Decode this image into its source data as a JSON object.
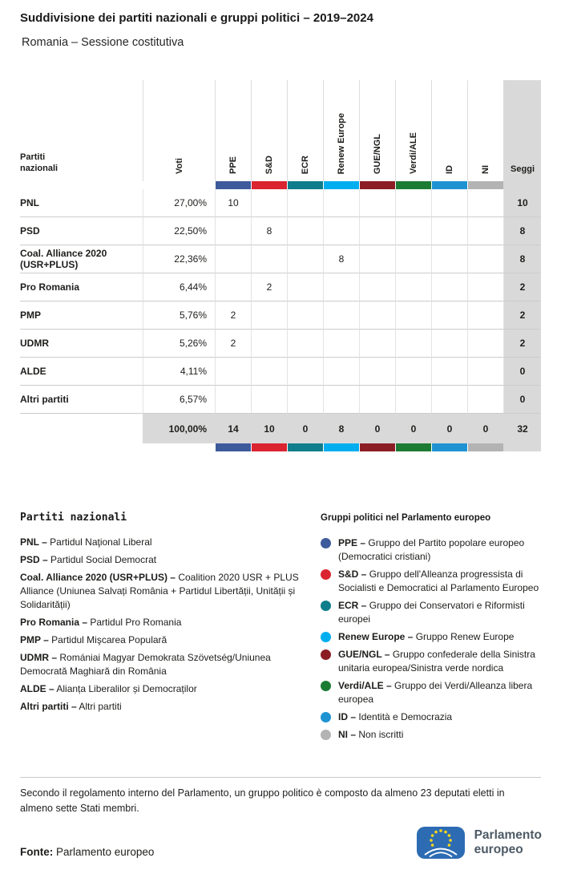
{
  "chart_data": {
    "type": "table",
    "title": "Suddivisione dei partiti nazionali e gruppi politici – 2019–2024",
    "subtitle": "Romania – Sessione costitutiva",
    "first_col_header": [
      "Partiti",
      "nazionali"
    ],
    "voti_header": "Voti",
    "seggi_header": "Seggi",
    "seggi_bg_color": "#d9d9d9",
    "groups": [
      {
        "label": "PPE",
        "color": "#3d5a9b"
      },
      {
        "label": "S&D",
        "color": "#da2430"
      },
      {
        "label": "ECR",
        "color": "#0f7d8b"
      },
      {
        "label": "Renew Europe",
        "color": "#00aeef"
      },
      {
        "label": "GUE/NGL",
        "color": "#8b1e24"
      },
      {
        "label": "Verdi/ALE",
        "color": "#1c7b33"
      },
      {
        "label": "ID",
        "color": "#1f93d2"
      },
      {
        "label": "NI",
        "color": "#b3b3b3"
      }
    ],
    "rows": [
      {
        "party": "PNL",
        "voti": "27,00%",
        "seats": [
          "10",
          "",
          "",
          "",
          "",
          "",
          "",
          ""
        ],
        "seggi": "10"
      },
      {
        "party": "PSD",
        "voti": "22,50%",
        "seats": [
          "",
          "8",
          "",
          "",
          "",
          "",
          "",
          ""
        ],
        "seggi": "8"
      },
      {
        "party": "Coal. Alliance 2020 (USR+PLUS)",
        "voti": "22,36%",
        "seats": [
          "",
          "",
          "",
          "8",
          "",
          "",
          "",
          ""
        ],
        "seggi": "8"
      },
      {
        "party": "Pro Romania",
        "voti": "6,44%",
        "seats": [
          "",
          "2",
          "",
          "",
          "",
          "",
          "",
          ""
        ],
        "seggi": "2"
      },
      {
        "party": "PMP",
        "voti": "5,76%",
        "seats": [
          "2",
          "",
          "",
          "",
          "",
          "",
          "",
          ""
        ],
        "seggi": "2"
      },
      {
        "party": "UDMR",
        "voti": "5,26%",
        "seats": [
          "2",
          "",
          "",
          "",
          "",
          "",
          "",
          ""
        ],
        "seggi": "2"
      },
      {
        "party": "ALDE",
        "voti": "4,11%",
        "seats": [
          "",
          "",
          "",
          "",
          "",
          "",
          "",
          ""
        ],
        "seggi": "0"
      },
      {
        "party": "Altri partiti",
        "voti": "6,57%",
        "seats": [
          "",
          "",
          "",
          "",
          "",
          "",
          "",
          ""
        ],
        "seggi": "0"
      }
    ],
    "total": {
      "voti": "100,00%",
      "seats": [
        "14",
        "10",
        "0",
        "8",
        "0",
        "0",
        "0",
        "0"
      ],
      "seggi": "32"
    }
  },
  "legend_parties": {
    "heading": "Partiti nazionali",
    "items": [
      {
        "abbr": "PNL –",
        "desc": "Partidul Naţional Liberal"
      },
      {
        "abbr": "PSD –",
        "desc": "Partidul Social Democrat"
      },
      {
        "abbr": "Coal. Alliance 2020 (USR+PLUS) –",
        "desc": "Coalition 2020 USR + PLUS Alliance (Uniunea Salvați România + Partidul Libertății, Unității și Solidarității)"
      },
      {
        "abbr": "Pro Romania –",
        "desc": "Partidul Pro Romania"
      },
      {
        "abbr": "PMP –",
        "desc": "Partidul Mişcarea Populară"
      },
      {
        "abbr": "UDMR –",
        "desc": "Romániai Magyar Demokrata Szövetség/Uniunea Democrată Maghiară din România"
      },
      {
        "abbr": "ALDE –",
        "desc": "Alianța Liberalilor și Democraților"
      },
      {
        "abbr": "Altri partiti –",
        "desc": "Altri partiti"
      }
    ]
  },
  "legend_groups": {
    "heading": "Gruppi politici nel Parlamento europeo",
    "items": [
      {
        "abbr": "PPE –",
        "desc": "Gruppo del Partito popolare europeo (Democratici cristiani)"
      },
      {
        "abbr": "S&D –",
        "desc": "Gruppo dell'Alleanza progressista di Socialisti e Democratici al Parlamento Europeo"
      },
      {
        "abbr": "ECR –",
        "desc": "Gruppo dei Conservatori e Riformisti europei"
      },
      {
        "abbr": "Renew Europe –",
        "desc": "Gruppo Renew Europe"
      },
      {
        "abbr": "GUE/NGL –",
        "desc": "Gruppo confederale della Sinistra unitaria europea/Sinistra verde nordica"
      },
      {
        "abbr": "Verdi/ALE –",
        "desc": "Gruppo dei Verdi/Alleanza libera europea"
      },
      {
        "abbr": "ID –",
        "desc": "Identità e Democrazia"
      },
      {
        "abbr": "NI –",
        "desc": "Non iscritti"
      }
    ]
  },
  "footer": {
    "note": "Secondo il regolamento interno del Parlamento, un gruppo politico è composto da almeno 23 deputati eletti in almeno sette Stati membri.",
    "fonte_label": "Fonte:",
    "fonte_value": "Parlamento europeo",
    "logo_line1": "Parlamento",
    "logo_line2": "europeo",
    "logo_colors": {
      "flag_blue": "#2d6cb3",
      "star_yellow": "#ffd617"
    }
  }
}
